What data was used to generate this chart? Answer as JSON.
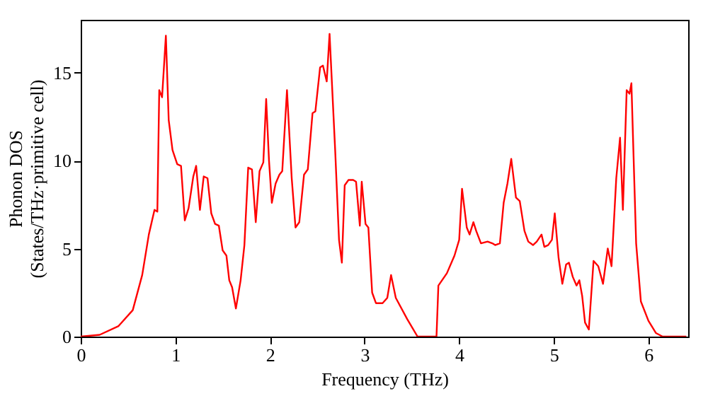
{
  "chart_data": {
    "type": "line",
    "xlabel": "Frequency (THz)",
    "ylabel": "Phonon DOS\n(States/THz·primitive cell)",
    "xlim": [
      0,
      6.42
    ],
    "ylim": [
      0,
      18
    ],
    "xticks": [
      0,
      1,
      2,
      3,
      4,
      5,
      6
    ],
    "yticks": [
      0,
      5,
      10,
      15
    ],
    "grid": false,
    "series": [
      {
        "color": "#ff0000",
        "line_style": "solid",
        "x": [
          0,
          0.2,
          0.4,
          0.55,
          0.65,
          0.72,
          0.78,
          0.81,
          0.83,
          0.86,
          0.9,
          0.93,
          0.97,
          1.02,
          1.06,
          1.1,
          1.14,
          1.19,
          1.22,
          1.26,
          1.3,
          1.34,
          1.38,
          1.42,
          1.46,
          1.5,
          1.54,
          1.57,
          1.6,
          1.64,
          1.69,
          1.73,
          1.77,
          1.81,
          1.85,
          1.89,
          1.93,
          1.96,
          1.99,
          2.02,
          2.06,
          2.1,
          2.13,
          2.18,
          2.23,
          2.27,
          2.31,
          2.36,
          2.4,
          2.45,
          2.48,
          2.53,
          2.56,
          2.6,
          2.63,
          2.69,
          2.73,
          2.76,
          2.79,
          2.83,
          2.88,
          2.91,
          2.95,
          2.97,
          3.01,
          3.04,
          3.08,
          3.12,
          3.19,
          3.24,
          3.28,
          3.33,
          3.45,
          3.56,
          3.76,
          3.78,
          3.87,
          3.95,
          4.0,
          4.03,
          4.08,
          4.11,
          4.15,
          4.18,
          4.23,
          4.3,
          4.35,
          4.38,
          4.43,
          4.47,
          4.51,
          4.55,
          4.6,
          4.64,
          4.69,
          4.73,
          4.78,
          4.82,
          4.87,
          4.9,
          4.94,
          4.98,
          5.01,
          5.05,
          5.09,
          5.13,
          5.16,
          5.2,
          5.24,
          5.27,
          5.3,
          5.33,
          5.37,
          5.42,
          5.47,
          5.52,
          5.57,
          5.61,
          5.66,
          5.7,
          5.73,
          5.77,
          5.8,
          5.82,
          5.87,
          5.92,
          6.0,
          6.08,
          6.15,
          6.4
        ],
        "values": [
          0,
          0.1,
          0.6,
          1.5,
          3.5,
          5.8,
          7.2,
          7.1,
          14.0,
          13.6,
          17.1,
          12.3,
          10.6,
          9.8,
          9.7,
          6.6,
          7.3,
          9.1,
          9.7,
          7.2,
          9.1,
          9.0,
          7.0,
          6.4,
          6.3,
          4.9,
          4.6,
          3.2,
          2.8,
          1.6,
          3.2,
          5.2,
          9.6,
          9.5,
          6.5,
          9.4,
          9.9,
          13.5,
          10.0,
          7.6,
          8.7,
          9.2,
          9.4,
          14.0,
          9.0,
          6.2,
          6.5,
          9.2,
          9.5,
          12.7,
          12.8,
          15.3,
          15.4,
          14.5,
          17.2,
          10.5,
          5.5,
          4.2,
          8.6,
          8.9,
          8.9,
          8.8,
          6.3,
          8.8,
          6.4,
          6.2,
          2.5,
          1.9,
          1.9,
          2.2,
          3.5,
          2.2,
          1.0,
          0,
          0,
          2.9,
          3.6,
          4.6,
          5.5,
          8.4,
          6.2,
          5.8,
          6.5,
          6.0,
          5.3,
          5.4,
          5.3,
          5.2,
          5.3,
          7.6,
          8.7,
          10.1,
          7.9,
          7.7,
          6.0,
          5.4,
          5.2,
          5.4,
          5.8,
          5.1,
          5.2,
          5.5,
          7.0,
          4.5,
          3.0,
          4.1,
          4.2,
          3.4,
          2.9,
          3.2,
          2.3,
          0.8,
          0.4,
          4.3,
          4.0,
          3.0,
          5.0,
          4.0,
          9.0,
          11.3,
          7.2,
          14.0,
          13.8,
          14.4,
          5.3,
          2.0,
          0.9,
          0.2,
          0.0,
          0
        ]
      }
    ]
  }
}
